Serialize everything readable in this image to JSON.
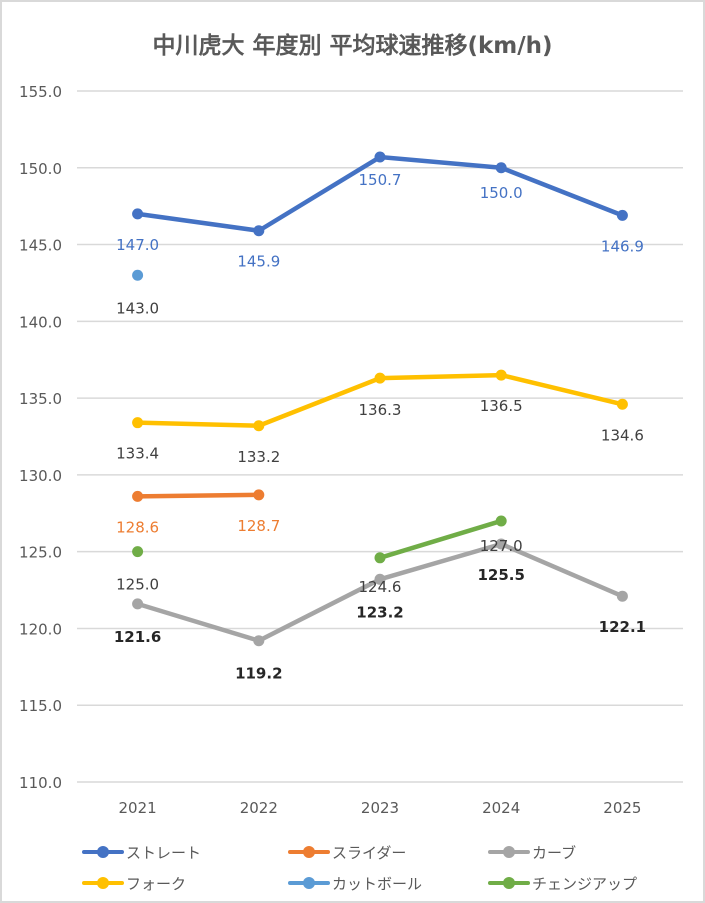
{
  "chart_data": {
    "type": "line",
    "title": "中川虎大 年度別 平均球速推移(km/h)",
    "xlabel": "",
    "ylabel": "",
    "categories": [
      "2021",
      "2022",
      "2023",
      "2024",
      "2025"
    ],
    "ylim": [
      110.0,
      155.0
    ],
    "yticks": [
      "110.0",
      "115.0",
      "120.0",
      "125.0",
      "130.0",
      "135.0",
      "140.0",
      "145.0",
      "150.0",
      "155.0"
    ],
    "grid": true,
    "legend_position": "bottom",
    "series": [
      {
        "name": "ストレート",
        "color": "#4472c4",
        "label_color": "#4472c4",
        "label_pos": "below",
        "label_bold": false,
        "values": [
          147.0,
          145.9,
          150.7,
          150.0,
          146.9
        ],
        "labels": [
          "147.0",
          "145.9",
          "150.7",
          "150.0",
          "146.9"
        ]
      },
      {
        "name": "スライダー",
        "color": "#ed7d31",
        "label_color": "#ed7d31",
        "label_pos": "below",
        "label_bold": false,
        "values": [
          128.6,
          128.7,
          null,
          null,
          null
        ],
        "labels": [
          "128.6",
          "128.7",
          null,
          null,
          null
        ]
      },
      {
        "name": "カーブ",
        "color": "#a5a5a5",
        "label_color": "#262626",
        "label_pos": "below",
        "label_bold": true,
        "values": [
          121.6,
          119.2,
          123.2,
          125.5,
          122.1
        ],
        "labels": [
          "121.6",
          "119.2",
          "123.2",
          "125.5",
          "122.1"
        ]
      },
      {
        "name": "フォーク",
        "color": "#ffc000",
        "label_color": "#404040",
        "label_pos": "below",
        "label_bold": false,
        "values": [
          133.4,
          133.2,
          136.3,
          136.5,
          134.6
        ],
        "labels": [
          "133.4",
          "133.2",
          "136.3",
          "136.5",
          "134.6"
        ]
      },
      {
        "name": "カットボール",
        "color": "#5b9bd5",
        "label_color": "#404040",
        "label_pos": "below",
        "label_bold": false,
        "values": [
          143.0,
          null,
          null,
          null,
          null
        ],
        "labels": [
          "143.0",
          null,
          null,
          null,
          null
        ]
      },
      {
        "name": "チェンジアップ",
        "color": "#70ad47",
        "label_color": "#404040",
        "label_pos": "below",
        "label_bold": false,
        "values": [
          125.0,
          null,
          124.6,
          127.0,
          null
        ],
        "labels": [
          "125.0",
          null,
          "124.6",
          "127.0",
          null
        ]
      }
    ]
  }
}
